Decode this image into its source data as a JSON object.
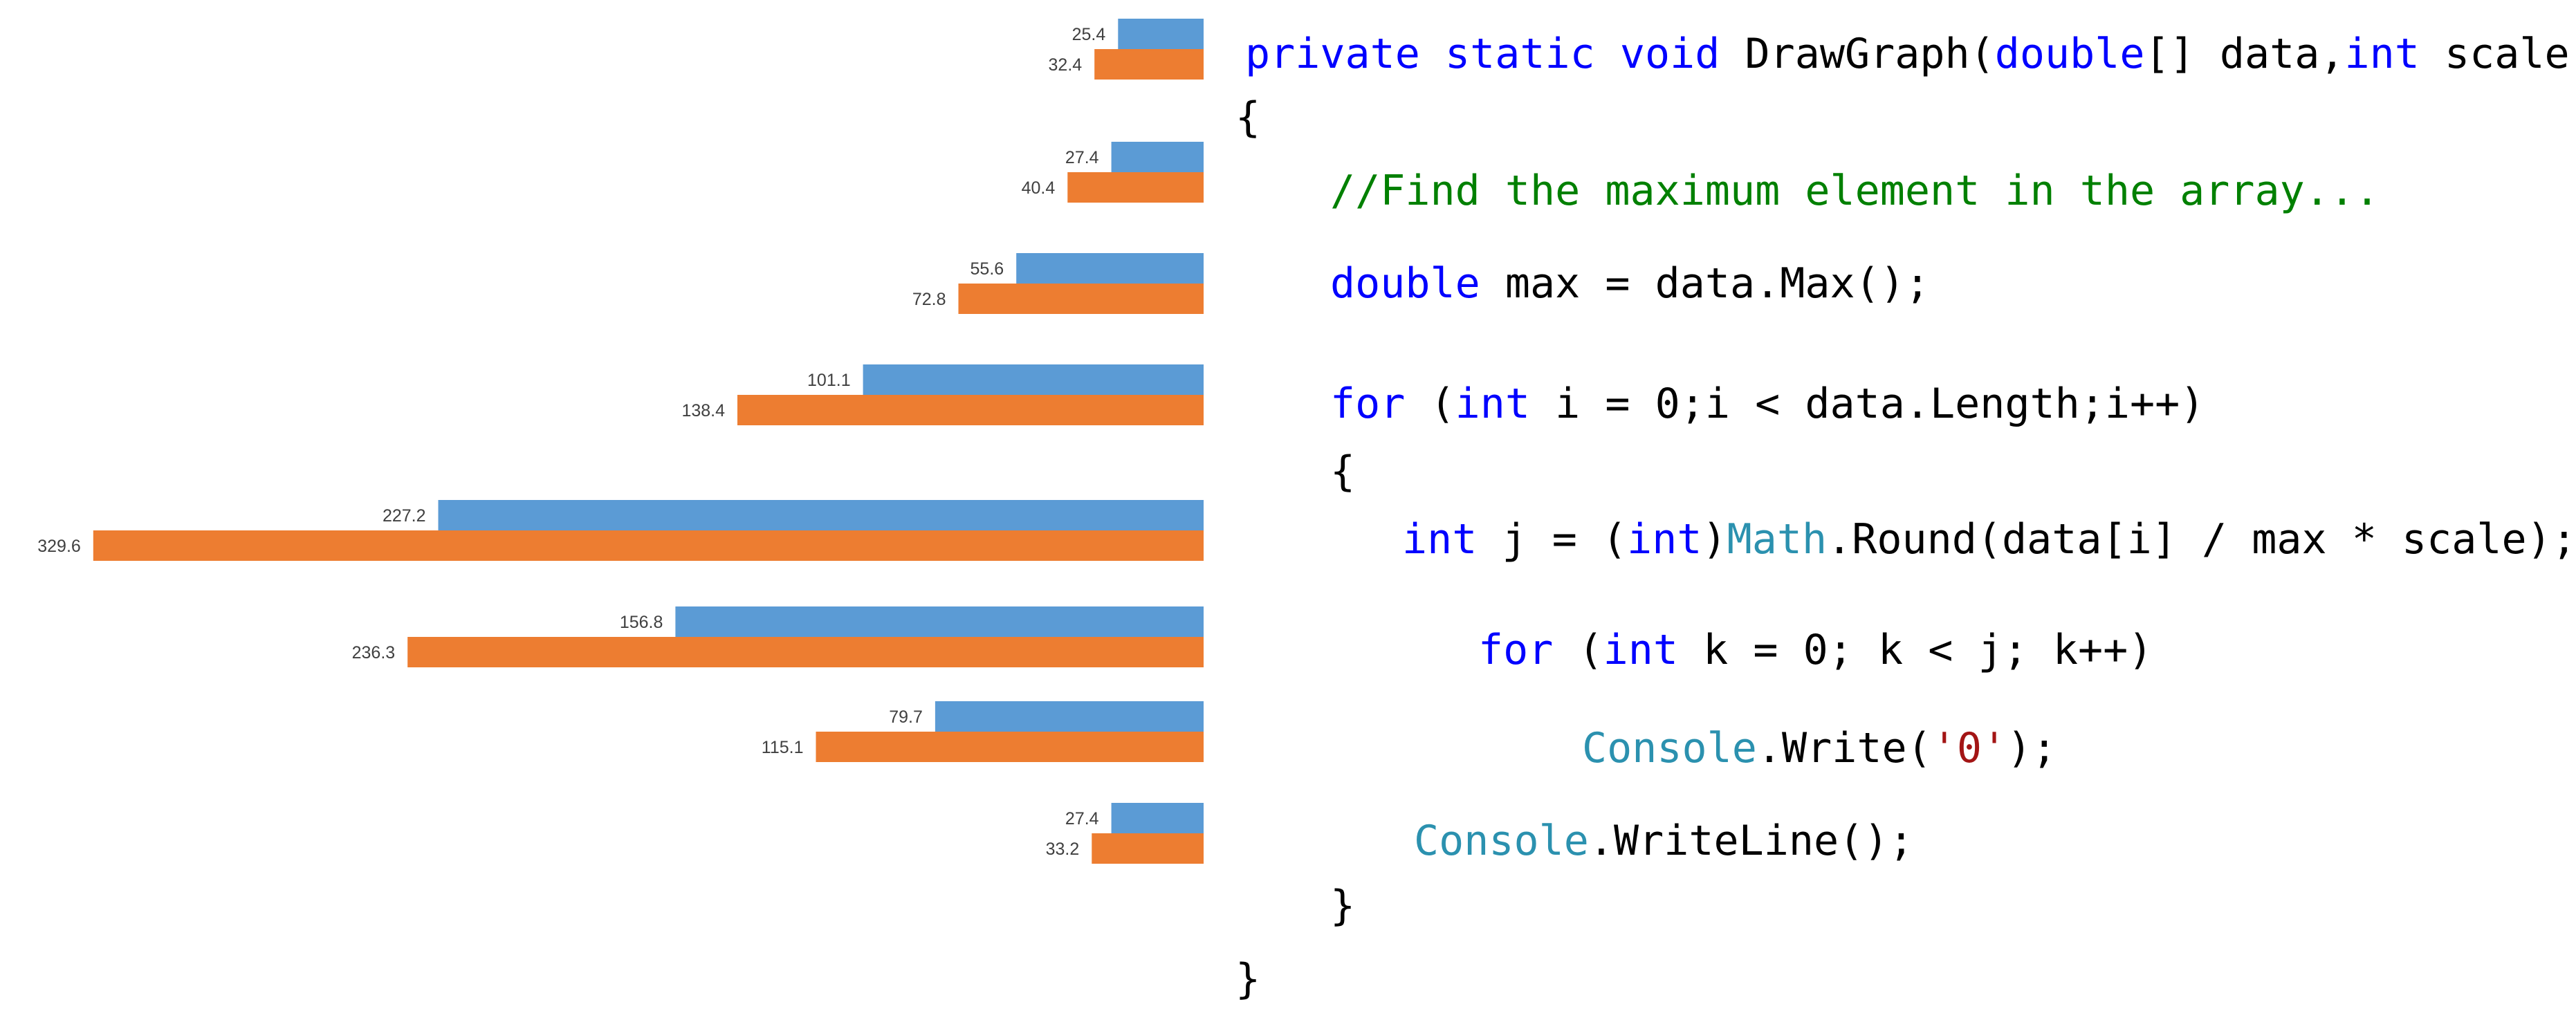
{
  "chart_data": {
    "type": "bar",
    "orientation": "horizontal",
    "grows": "right-to-left",
    "grid": false,
    "legend": "none",
    "xlim": [
      0,
      340
    ],
    "series": [
      {
        "color": "#5b9bd5",
        "values": [
          25.4,
          27.4,
          55.6,
          101.1,
          227.2,
          156.8,
          79.7,
          27.4
        ]
      },
      {
        "color": "#ed7d31",
        "values": [
          32.4,
          40.4,
          72.8,
          138.4,
          329.6,
          236.3,
          115.1,
          33.2
        ]
      }
    ]
  },
  "code": {
    "language": "csharp",
    "colors": {
      "keyword": "#0000ff",
      "type": "#2b91af",
      "comment": "#008000",
      "string": "#a31515",
      "plain": "#000000"
    },
    "lines": [
      [
        [
          "kw",
          "private"
        ],
        [
          "p",
          " "
        ],
        [
          "kw",
          "static"
        ],
        [
          "p",
          " "
        ],
        [
          "kw",
          "void"
        ],
        [
          "p",
          " DrawGraph("
        ],
        [
          "kw",
          "double"
        ],
        [
          "p",
          "[] data,"
        ],
        [
          "kw",
          "int"
        ],
        [
          "p",
          " scale)"
        ]
      ],
      [
        [
          "p",
          "{"
        ]
      ],
      [
        [
          "cmt",
          "//Find the maximum element in the array..."
        ]
      ],
      [
        [
          "kw",
          "double"
        ],
        [
          "p",
          " max = data.Max();"
        ]
      ],
      [
        [
          "kw",
          "for"
        ],
        [
          "p",
          " ("
        ],
        [
          "kw",
          "int"
        ],
        [
          "p",
          " i = 0;i < data.Length;i++)"
        ]
      ],
      [
        [
          "p",
          "{"
        ]
      ],
      [
        [
          "kw",
          "int"
        ],
        [
          "p",
          " j = ("
        ],
        [
          "kw",
          "int"
        ],
        [
          "p",
          ")"
        ],
        [
          "type",
          "Math"
        ],
        [
          "p",
          ".Round(data[i] / max * scale);"
        ]
      ],
      [
        [
          "kw",
          "for"
        ],
        [
          "p",
          " ("
        ],
        [
          "kw",
          "int"
        ],
        [
          "p",
          " k = 0; k < j; k++)"
        ]
      ],
      [
        [
          "type",
          "Console"
        ],
        [
          "p",
          ".Write("
        ],
        [
          "str",
          "'0'"
        ],
        [
          "p",
          ");"
        ]
      ],
      [
        [
          "type",
          "Console"
        ],
        [
          "p",
          ".WriteLine();"
        ]
      ],
      [
        [
          "p",
          "}"
        ]
      ],
      [
        [
          "p",
          "}"
        ]
      ]
    ]
  }
}
